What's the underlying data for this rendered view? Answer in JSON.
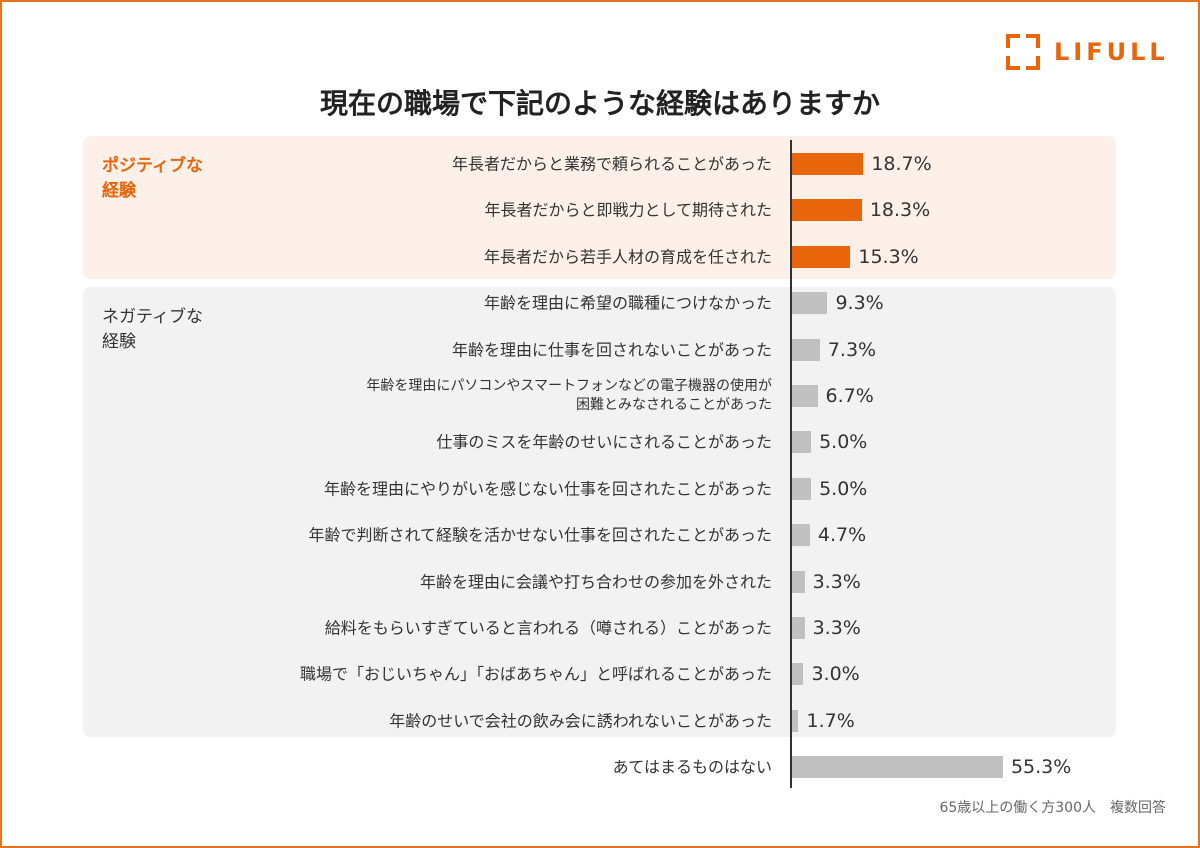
{
  "logo": {
    "text": "LIFULL"
  },
  "title": "現在の職場で下記のような経験はありますか",
  "groups": {
    "positive": "ポジティブな\n経験",
    "negative": "ネガティブな\n経験"
  },
  "note": "65歳以上の働く方300人　複数回答",
  "colors": {
    "positive": "#e8650a",
    "other": "#c0c0c0",
    "frame": "#e8731a"
  },
  "chart_data": {
    "type": "bar",
    "orientation": "horizontal",
    "title": "現在の職場で下記のような経験はありますか",
    "unit": "%",
    "categories": [
      "年長者だからと業務で頼られることがあった",
      "年長者だからと即戦力として期待された",
      "年長者だから若手人材の育成を任された",
      "年齢を理由に希望の職種につけなかった",
      "年齢を理由に仕事を回されないことがあった",
      "年齢を理由にパソコンやスマートフォンなどの電子機器の使用が\n困難とみなされることがあった",
      "仕事のミスを年齢のせいにされることがあった",
      "年齢を理由にやりがいを感じない仕事を回されたことがあった",
      "年齢で判断されて経験を活かせない仕事を回されたことがあった",
      "年齢を理由に会議や打ち合わせの参加を外された",
      "給料をもらいすぎていると言われる（噂される）ことがあった",
      "職場で「おじいちゃん」「おばあちゃん」と呼ばれることがあった",
      "年齢のせいで会社の飲み会に誘われないことがあった",
      "あてはまるものはない"
    ],
    "values": [
      18.7,
      18.3,
      15.3,
      9.3,
      7.3,
      6.7,
      5.0,
      5.0,
      4.7,
      3.3,
      3.3,
      3.0,
      1.7,
      55.3
    ],
    "value_labels": [
      "18.7%",
      "18.3%",
      "15.3%",
      "9.3%",
      "7.3%",
      "6.7%",
      "5.0%",
      "5.0%",
      "4.7%",
      "3.3%",
      "3.3%",
      "3.0%",
      "1.7%",
      "55.3%"
    ],
    "group": [
      "positive",
      "positive",
      "positive",
      "negative",
      "negative",
      "negative",
      "negative",
      "negative",
      "negative",
      "negative",
      "negative",
      "negative",
      "negative",
      "none"
    ]
  }
}
